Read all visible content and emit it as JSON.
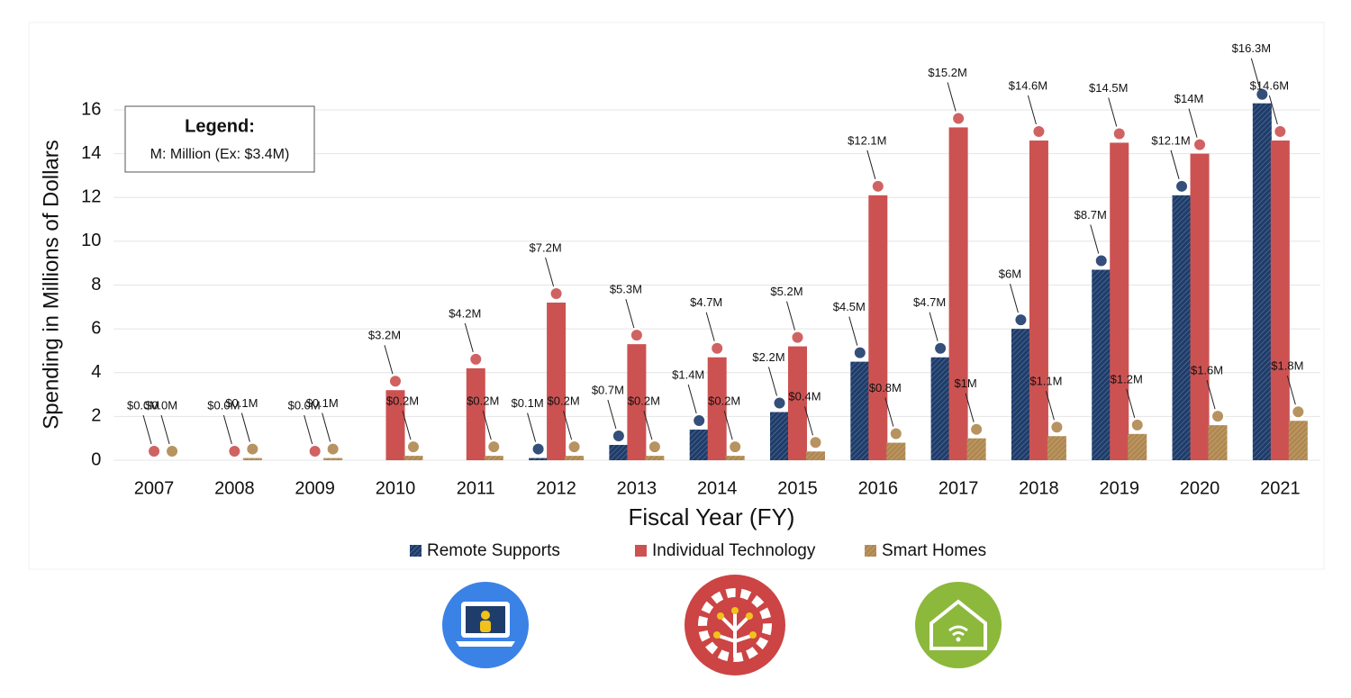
{
  "chart_data": {
    "type": "bar",
    "y_label": "Spending in Millions of Dollars",
    "x_label": "Fiscal Year (FY)",
    "legend_box": {
      "title": "Legend:",
      "text": "M: Million (Ex: $3.4M)"
    },
    "categories": [
      "2007",
      "2008",
      "2009",
      "2010",
      "2011",
      "2012",
      "2013",
      "2014",
      "2015",
      "2016",
      "2017",
      "2018",
      "2019",
      "2020",
      "2021"
    ],
    "series": [
      {
        "name": "Remote Supports",
        "color": "#1f3d6b",
        "hatch": true,
        "values": [
          null,
          null,
          null,
          null,
          null,
          0.1,
          0.7,
          1.4,
          2.2,
          4.5,
          4.7,
          6,
          8.7,
          12.1,
          16.3
        ],
        "value_labels": [
          null,
          null,
          null,
          null,
          null,
          "$0.1M",
          "$0.7M",
          "$1.4M",
          "$2.2M",
          "$4.5M",
          "$4.7M",
          "$6M",
          "$8.7M",
          "$12.1M",
          "$16.3M"
        ]
      },
      {
        "name": "Individual Technology",
        "color": "#cc5252",
        "hatch": false,
        "values": [
          0.0,
          0.0,
          0.0,
          3.2,
          4.2,
          7.2,
          5.3,
          4.7,
          5.2,
          12.1,
          15.2,
          14.6,
          14.5,
          14,
          14.6
        ],
        "value_labels": [
          "$0.0M",
          "$0.0M",
          "$0.0M",
          "$3.2M",
          "$4.2M",
          "$7.2M",
          "$5.3M",
          "$4.7M",
          "$5.2M",
          "$12.1M",
          "$15.2M",
          "$14.6M",
          "$14.5M",
          "$14M",
          "$14.6M"
        ]
      },
      {
        "name": "Smart Homes",
        "color": "#b08850",
        "hatch": true,
        "values": [
          0.0,
          0.1,
          0.1,
          0.2,
          0.2,
          0.2,
          0.2,
          0.2,
          0.4,
          0.8,
          1,
          1.1,
          1.2,
          1.6,
          1.8
        ],
        "value_labels": [
          "$0.0M",
          "$0.1M",
          "$0.1M",
          "$0.2M",
          "$0.2M",
          "$0.2M",
          "$0.2M",
          "$0.2M",
          "$0.4M",
          "$0.8M",
          "$1M",
          "$1.1M",
          "$1.2M",
          "$1.6M",
          "$1.8M"
        ]
      }
    ],
    "ylim": [
      0,
      16
    ],
    "yticks": [
      0,
      2,
      4,
      6,
      8,
      10,
      12,
      14,
      16
    ],
    "grid": true,
    "legend": "bottom"
  }
}
